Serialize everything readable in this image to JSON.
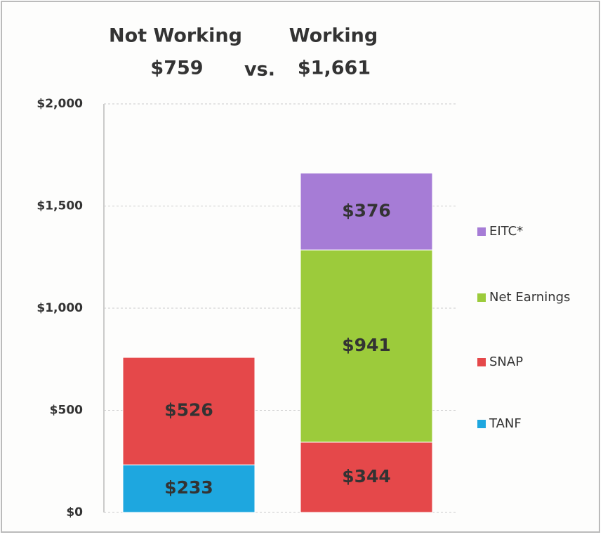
{
  "chart_data": {
    "type": "stacked_bar",
    "categories": [
      "Not Working",
      "Working"
    ],
    "total_labels": [
      "$759",
      "$1,661"
    ],
    "separator": "vs.",
    "series": [
      {
        "name": "TANF",
        "color": "#1ea7df",
        "values": [
          233,
          null
        ],
        "value_labels": [
          "$233",
          null
        ]
      },
      {
        "name": "SNAP",
        "color": "#e5484a",
        "values": [
          526,
          344
        ],
        "value_labels": [
          "$526",
          "$344"
        ]
      },
      {
        "name": "Net Earnings",
        "color": "#9ccb3b",
        "values": [
          null,
          941
        ],
        "value_labels": [
          null,
          "$941"
        ]
      },
      {
        "name": "EITC*",
        "color": "#a67cd6",
        "values": [
          null,
          376
        ],
        "value_labels": [
          null,
          "$376"
        ]
      }
    ],
    "ylim": [
      0,
      2000
    ],
    "yticks": [
      {
        "value": 0,
        "label": "$0"
      },
      {
        "value": 500,
        "label": "$500"
      },
      {
        "value": 1000,
        "label": "$1,000"
      },
      {
        "value": 1500,
        "label": "$1,500"
      },
      {
        "value": 2000,
        "label": "$2,000"
      }
    ],
    "grid": true,
    "legend": "right"
  }
}
